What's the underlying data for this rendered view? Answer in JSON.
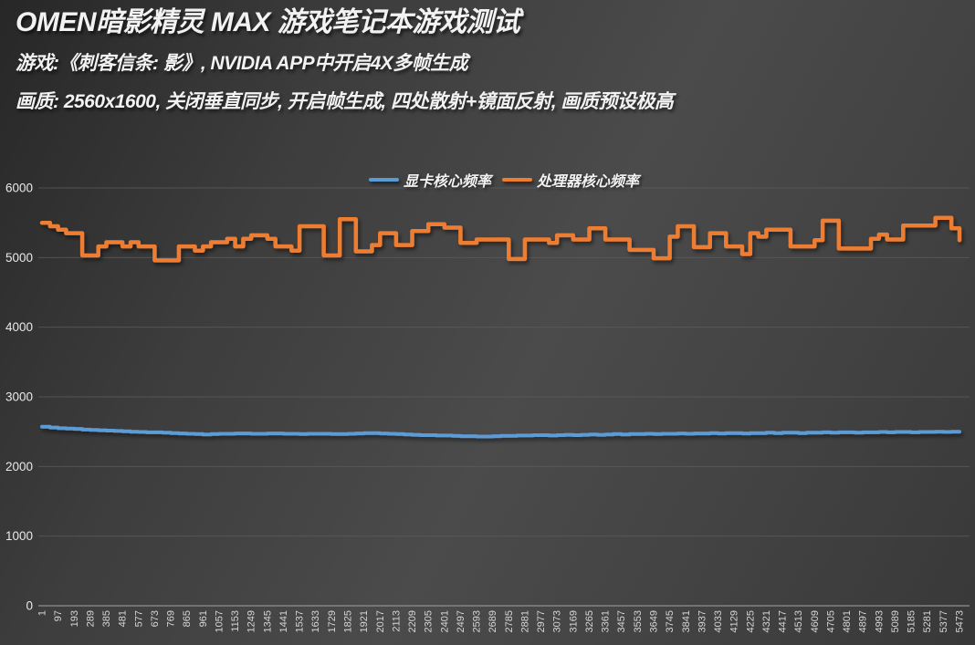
{
  "header": {
    "title": "OMEN暗影精灵 MAX 游戏笔记本游戏测试",
    "subtitle1": "游戏:《刺客信条: 影》, NVIDIA APP中开启4X多帧生成",
    "subtitle2": "画质: 2560x1600, 关闭垂直同步, 开启帧生成, 四处散射+镜面反射, 画质预设极高"
  },
  "chart_data": {
    "type": "line",
    "title": "OMEN暗影精灵 MAX 游戏笔记本游戏测试",
    "xlabel": "",
    "ylabel": "",
    "grid": true,
    "legend_position": "top-center",
    "ylim": [
      0,
      6000
    ],
    "y_ticks": [
      0,
      1000,
      2000,
      3000,
      4000,
      5000,
      6000
    ],
    "x_start": 1,
    "x_step": 48,
    "x_axis_tick_step": 96,
    "x_tick_labels": [
      "1",
      "97",
      "193",
      "289",
      "385",
      "481",
      "577",
      "673",
      "769",
      "865",
      "961",
      "1057",
      "1153",
      "1249",
      "1345",
      "1441",
      "1537",
      "1633",
      "1729",
      "1825",
      "1921",
      "2017",
      "2113",
      "2209",
      "2305",
      "2401",
      "2497",
      "2593",
      "2689",
      "2785",
      "2881",
      "2977",
      "3073",
      "3169",
      "3265",
      "3361",
      "3457",
      "3553",
      "3649",
      "3745",
      "3841",
      "3937",
      "4033",
      "4129",
      "4225",
      "4321",
      "4417",
      "4513",
      "4609",
      "4705",
      "4801",
      "4897",
      "4993",
      "5089",
      "5185",
      "5281",
      "5377",
      "5473"
    ],
    "legend": [
      {
        "label": "显卡核心频率",
        "color": "#5B9BD5"
      },
      {
        "label": "处理器核心频率",
        "color": "#ED7D31"
      }
    ],
    "series": [
      {
        "name": "显卡核心频率",
        "color": "#5B9BD5",
        "values": [
          2570,
          2560,
          2550,
          2545,
          2540,
          2530,
          2525,
          2520,
          2515,
          2510,
          2505,
          2500,
          2495,
          2490,
          2490,
          2485,
          2480,
          2475,
          2470,
          2465,
          2460,
          2465,
          2470,
          2470,
          2475,
          2475,
          2470,
          2470,
          2475,
          2475,
          2470,
          2470,
          2465,
          2470,
          2470,
          2470,
          2465,
          2465,
          2470,
          2475,
          2480,
          2480,
          2475,
          2470,
          2465,
          2460,
          2455,
          2450,
          2450,
          2445,
          2445,
          2440,
          2435,
          2435,
          2430,
          2430,
          2435,
          2440,
          2440,
          2445,
          2445,
          2450,
          2450,
          2445,
          2450,
          2455,
          2450,
          2455,
          2460,
          2455,
          2460,
          2465,
          2460,
          2465,
          2465,
          2470,
          2465,
          2470,
          2470,
          2475,
          2470,
          2475,
          2475,
          2480,
          2475,
          2480,
          2480,
          2475,
          2480,
          2480,
          2485,
          2480,
          2485,
          2485,
          2480,
          2485,
          2485,
          2490,
          2485,
          2490,
          2490,
          2485,
          2490,
          2490,
          2495,
          2490,
          2495,
          2495,
          2490,
          2495,
          2495,
          2500,
          2495,
          2500,
          2500
        ]
      },
      {
        "name": "处理器核心频率",
        "color": "#ED7D31",
        "values": [
          5500,
          5450,
          5400,
          5350,
          5350,
          5030,
          5030,
          5160,
          5220,
          5220,
          5160,
          5220,
          5160,
          5160,
          4960,
          4960,
          4960,
          5160,
          5160,
          5100,
          5160,
          5220,
          5220,
          5270,
          5160,
          5270,
          5320,
          5320,
          5270,
          5160,
          5160,
          5100,
          5450,
          5450,
          5450,
          5030,
          5030,
          5550,
          5550,
          5090,
          5090,
          5180,
          5350,
          5350,
          5180,
          5180,
          5380,
          5380,
          5480,
          5480,
          5430,
          5430,
          5210,
          5210,
          5260,
          5260,
          5260,
          5260,
          4980,
          4980,
          5260,
          5260,
          5260,
          5210,
          5320,
          5320,
          5260,
          5260,
          5420,
          5420,
          5260,
          5260,
          5260,
          5110,
          5110,
          5110,
          4990,
          4990,
          5300,
          5450,
          5450,
          5150,
          5150,
          5350,
          5350,
          5160,
          5160,
          5050,
          5350,
          5300,
          5400,
          5400,
          5400,
          5160,
          5160,
          5160,
          5250,
          5530,
          5530,
          5130,
          5130,
          5130,
          5130,
          5270,
          5330,
          5260,
          5260,
          5460,
          5460,
          5460,
          5460,
          5570,
          5570,
          5420,
          5250
        ]
      }
    ],
    "colors": {
      "background": "#3f3f3f",
      "gridline": "#5d5d5d",
      "axis_text": "#d6d6d6"
    }
  }
}
